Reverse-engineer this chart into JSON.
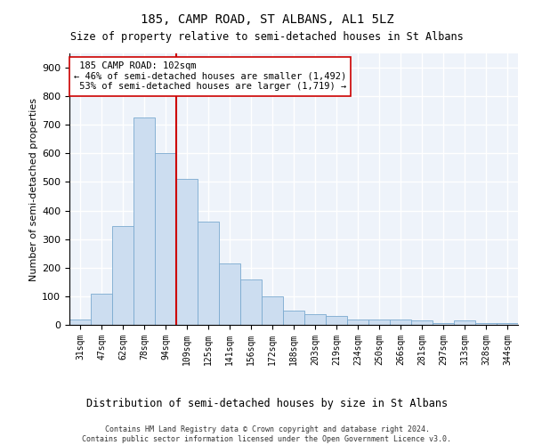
{
  "title": "185, CAMP ROAD, ST ALBANS, AL1 5LZ",
  "subtitle": "Size of property relative to semi-detached houses in St Albans",
  "xlabel": "Distribution of semi-detached houses by size in St Albans",
  "ylabel": "Number of semi-detached properties",
  "categories": [
    "31sqm",
    "47sqm",
    "62sqm",
    "78sqm",
    "94sqm",
    "109sqm",
    "125sqm",
    "141sqm",
    "156sqm",
    "172sqm",
    "188sqm",
    "203sqm",
    "219sqm",
    "234sqm",
    "250sqm",
    "266sqm",
    "281sqm",
    "297sqm",
    "313sqm",
    "328sqm",
    "344sqm"
  ],
  "values": [
    20,
    110,
    345,
    725,
    600,
    510,
    360,
    215,
    160,
    100,
    50,
    38,
    30,
    20,
    18,
    18,
    15,
    5,
    15,
    5,
    5
  ],
  "bar_color": "#ccddf0",
  "bar_edge_color": "#7aaad0",
  "vline_color": "#cc0000",
  "property_label": "185 CAMP ROAD: 102sqm",
  "smaller_pct": "46%",
  "smaller_count": "1,492",
  "larger_pct": "53%",
  "larger_count": "1,719",
  "ylim": [
    0,
    950
  ],
  "yticks": [
    0,
    100,
    200,
    300,
    400,
    500,
    600,
    700,
    800,
    900
  ],
  "footer": "Contains HM Land Registry data © Crown copyright and database right 2024.\nContains public sector information licensed under the Open Government Licence v3.0.",
  "bg_color": "#eef3fa",
  "grid_color": "white"
}
